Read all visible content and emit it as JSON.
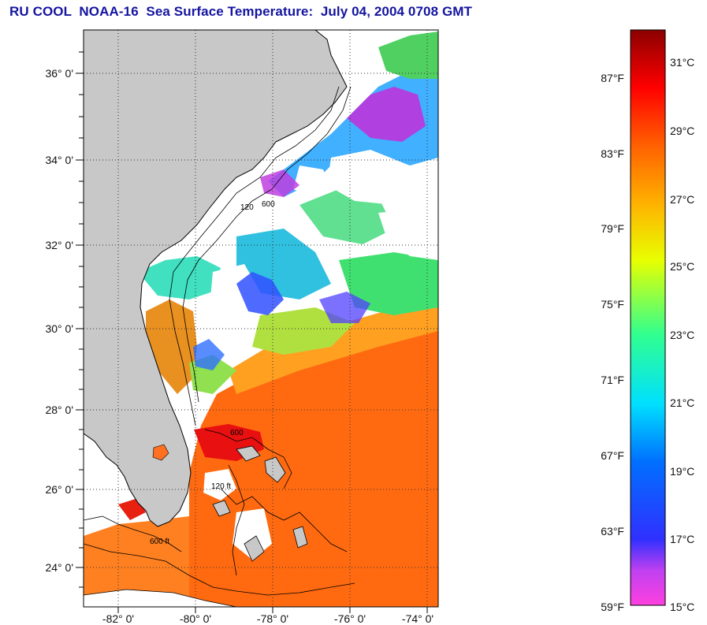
{
  "title": "RU COOL  NOAA-16  Sea Surface Temperature:  July 04, 2004 0708 GMT",
  "map": {
    "lon_range": [
      -83.0,
      -73.0
    ],
    "lat_range": [
      23.0,
      37.0
    ],
    "grid": "dotted",
    "lat_ticks": [
      "36° 0'",
      "34° 0'",
      "32° 0'",
      "30° 0'",
      "28° 0'",
      "26° 0'",
      "24° 0'"
    ],
    "lon_ticks": [
      "-82° 0'",
      "-80° 0'",
      "-78° 0'",
      "-76° 0'",
      "-74° 0'"
    ],
    "land_color": "#c8c8c8",
    "cloud_color": "#ffffff",
    "contour_labels": [
      "600",
      "120",
      "600",
      "600 ft",
      "120 ft"
    ]
  },
  "colorbar": {
    "fahrenheit_labels": [
      "87°F",
      "83°F",
      "79°F",
      "75°F",
      "71°F",
      "67°F",
      "63°F",
      "59°F"
    ],
    "celsius_labels": [
      "31°C",
      "29°C",
      "27°C",
      "25°C",
      "23°C",
      "21°C",
      "19°C",
      "17°C",
      "15°C"
    ],
    "colors_bottom_to_top": [
      "#ff40e0",
      "#a040ff",
      "#3030ff",
      "#0080ff",
      "#00e0ff",
      "#40ff80",
      "#e0ff00",
      "#ffa000",
      "#ff5000",
      "#ff0000",
      "#8c0000"
    ]
  }
}
